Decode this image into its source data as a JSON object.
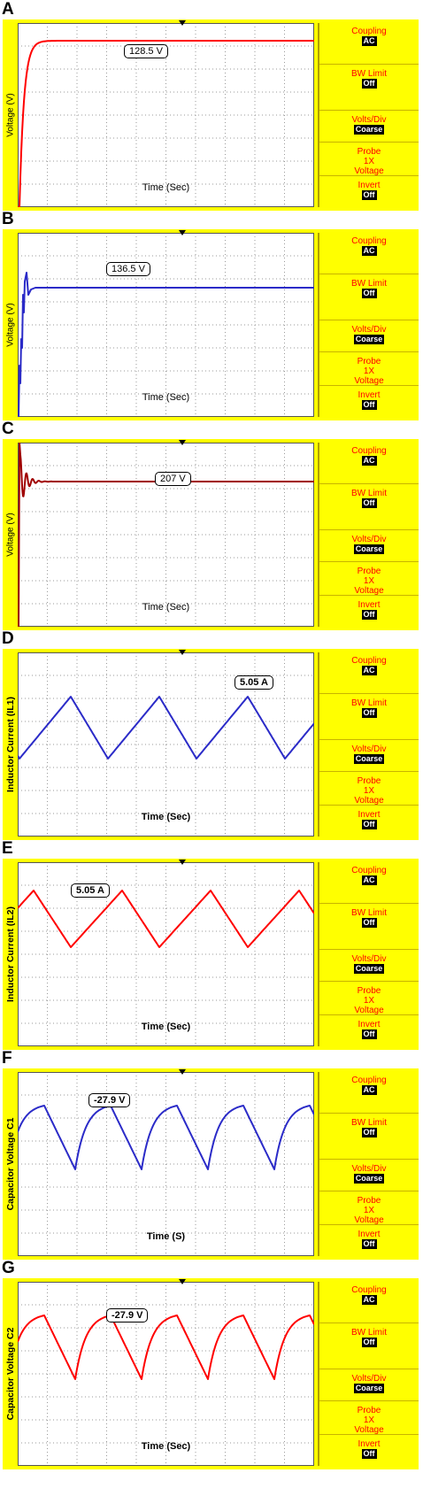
{
  "menu": {
    "coupling_label": "Coupling",
    "coupling_value": "AC",
    "bwlimit_label": "BW Limit",
    "bwlimit_value": "Off",
    "voltsdiv_label": "Volts/Div",
    "voltsdiv_value": "Coarse",
    "probe_label_1": "Probe",
    "probe_label_2": "1X",
    "probe_label_3": "Voltage",
    "invert_label": "Invert",
    "invert_value": "Off"
  },
  "colors": {
    "red_trace": "#ff0000",
    "blue_trace": "#2b2bc8",
    "darkred_trace": "#a00000",
    "scope_bg": "#ffff00",
    "menu_text": "#ff0000"
  },
  "chart_data": [
    {
      "panel": "A",
      "type": "line",
      "shape": "rise",
      "ylabel": "Voltage (V)",
      "xlabel": "Time (Sec)",
      "annotation": "128.5 V",
      "color": "#ff0000",
      "steady_value_V": 128.5
    },
    {
      "panel": "B",
      "type": "line",
      "shape": "overshoot",
      "ylabel": "Voltage (V)",
      "xlabel": "Time (Sec)",
      "annotation": "136.5 V",
      "color": "#2b2bc8",
      "steady_value_V": 136.5
    },
    {
      "panel": "C",
      "type": "line",
      "shape": "ringing",
      "ylabel": "Voltage (V)",
      "xlabel": "Time (Sec)",
      "annotation": "207 V",
      "color": "#a00000",
      "steady_value_V": 207
    },
    {
      "panel": "D",
      "type": "line",
      "shape": "triangle",
      "ylabel": "Inductor Current (IL1)",
      "xlabel": "Time (Sec)",
      "annotation": "5.05 A",
      "color": "#2b2bc8",
      "peak_value_A": 5.05
    },
    {
      "panel": "E",
      "type": "line",
      "shape": "triangle",
      "ylabel": "Inductor Current (IL2)",
      "xlabel": "Time (Sec)",
      "annotation": "5.05 A",
      "color": "#ff0000",
      "peak_value_A": 5.05
    },
    {
      "panel": "F",
      "type": "line",
      "shape": "cap",
      "ylabel": "Capacitor Voltage C1",
      "xlabel": "Time (S)",
      "annotation": "-27.9 V",
      "color": "#2b2bc8",
      "peak_value_V": -27.9
    },
    {
      "panel": "G",
      "type": "line",
      "shape": "cap",
      "ylabel": "Capacitor Voltage C2",
      "xlabel": "Time (Sec)",
      "annotation": "-27.9 V",
      "color": "#ff0000",
      "peak_value_V": -27.9
    }
  ]
}
